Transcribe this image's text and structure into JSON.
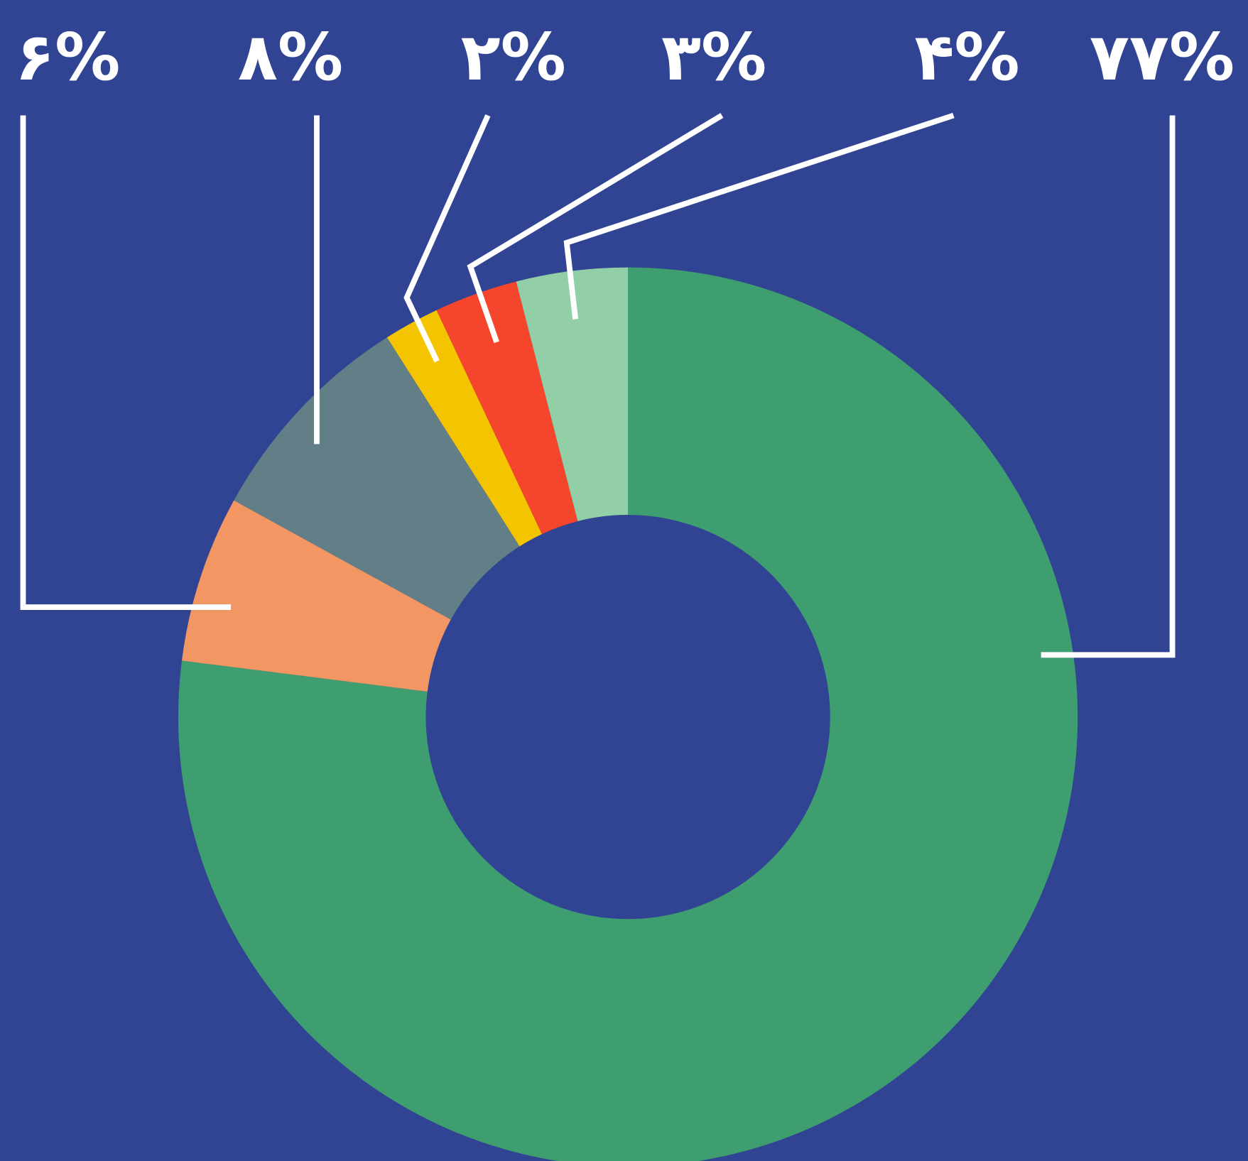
{
  "chart_data": {
    "type": "donut",
    "values": [
      77,
      6,
      8,
      2,
      3,
      4
    ],
    "value_labels": [
      "۷۷%",
      "۶%",
      "۸%",
      "۲%",
      "۳%",
      "۴%"
    ],
    "colors": [
      "#3f9e6f",
      "#f29664",
      "#627e86",
      "#f5c400",
      "#f5452d",
      "#92cfa6"
    ]
  }
}
